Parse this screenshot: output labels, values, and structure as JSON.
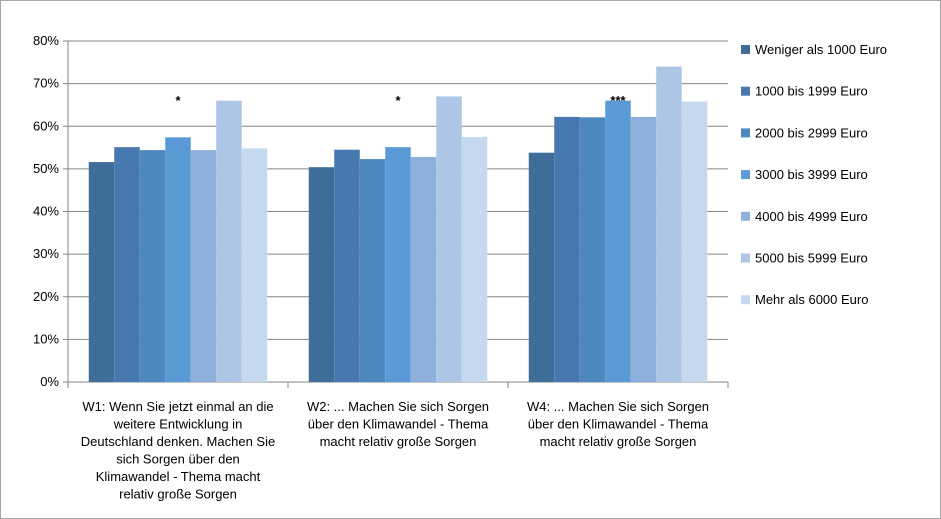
{
  "chart_data": {
    "type": "bar",
    "title": "",
    "xlabel": "",
    "ylabel": "",
    "ylim": [
      0,
      0.8
    ],
    "yticks": [
      "0%",
      "10%",
      "20%",
      "30%",
      "40%",
      "50%",
      "60%",
      "70%",
      "80%"
    ],
    "grid": true,
    "legend_position": "right",
    "categories": [
      {
        "lines": [
          "W1: Wenn Sie jetzt einmal an die",
          "weitere Entwicklung in",
          "Deutschland denken. Machen Sie",
          "sich Sorgen über den",
          "Klimawandel - Thema macht",
          "relativ große Sorgen"
        ],
        "significance": "*"
      },
      {
        "lines": [
          "W2: ... Machen Sie sich Sorgen",
          "über den Klimawandel - Thema",
          "macht relativ große Sorgen"
        ],
        "significance": "*"
      },
      {
        "lines": [
          "W4: ... Machen Sie sich Sorgen",
          "über den Klimawandel - Thema",
          "macht relativ große Sorgen"
        ],
        "significance": "***"
      }
    ],
    "series": [
      {
        "name": "Weniger als 1000 Euro",
        "color": "#3f6d9a",
        "values": [
          0.516,
          0.504,
          0.538
        ]
      },
      {
        "name": "1000 bis 1999 Euro",
        "color": "#4779b0",
        "values": [
          0.551,
          0.545,
          0.622
        ]
      },
      {
        "name": "2000 bis 2999 Euro",
        "color": "#4f88c0",
        "values": [
          0.544,
          0.523,
          0.621
        ]
      },
      {
        "name": "3000 bis 3999 Euro",
        "color": "#5a9ad5",
        "values": [
          0.574,
          0.551,
          0.66
        ]
      },
      {
        "name": "4000 bis 4999 Euro",
        "color": "#8db0dc",
        "values": [
          0.544,
          0.528,
          0.622
        ]
      },
      {
        "name": "5000 bis 5999 Euro",
        "color": "#aec6e6",
        "values": [
          0.66,
          0.67,
          0.74
        ]
      },
      {
        "name": "Mehr als 6000 Euro",
        "color": "#c6d8ee",
        "values": [
          0.548,
          0.575,
          0.658
        ]
      }
    ]
  }
}
